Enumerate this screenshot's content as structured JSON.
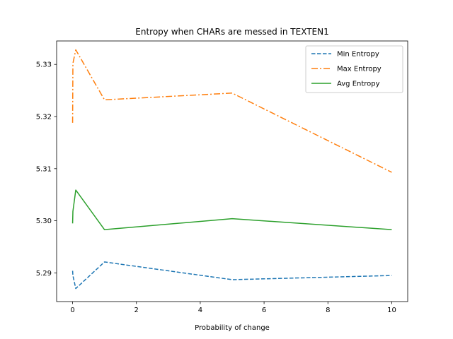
{
  "chart_data": {
    "type": "line",
    "title": "Entropy when CHARs are messed in TEXTEN1",
    "xlabel": "Probability of change",
    "ylabel": "",
    "xlim": [
      -0.5,
      10.5
    ],
    "ylim": [
      5.2845,
      5.3345
    ],
    "xticks": [
      0,
      2,
      4,
      6,
      8,
      10
    ],
    "xtick_labels": [
      "0",
      "2",
      "4",
      "6",
      "8",
      "10"
    ],
    "yticks": [
      5.29,
      5.3,
      5.31,
      5.32,
      5.33
    ],
    "ytick_labels": [
      "5.29",
      "5.30",
      "5.31",
      "5.32",
      "5.33"
    ],
    "grid": false,
    "legend_position": "upper right",
    "x": [
      0.001,
      0.01,
      0.1,
      1,
      5,
      10
    ],
    "series": [
      {
        "name": "Min Entropy",
        "color": "#1f77b4",
        "style": "dashed",
        "values": [
          5.2904,
          5.2895,
          5.287,
          5.2921,
          5.2887,
          5.2895
        ]
      },
      {
        "name": "Max Entropy",
        "color": "#ff7f0e",
        "style": "dashdot",
        "values": [
          5.3188,
          5.3302,
          5.3328,
          5.3232,
          5.3245,
          5.3093
        ]
      },
      {
        "name": "Avg Entropy",
        "color": "#2ca02c",
        "style": "solid",
        "values": [
          5.2995,
          5.3018,
          5.3059,
          5.2983,
          5.3004,
          5.2983
        ]
      }
    ]
  }
}
